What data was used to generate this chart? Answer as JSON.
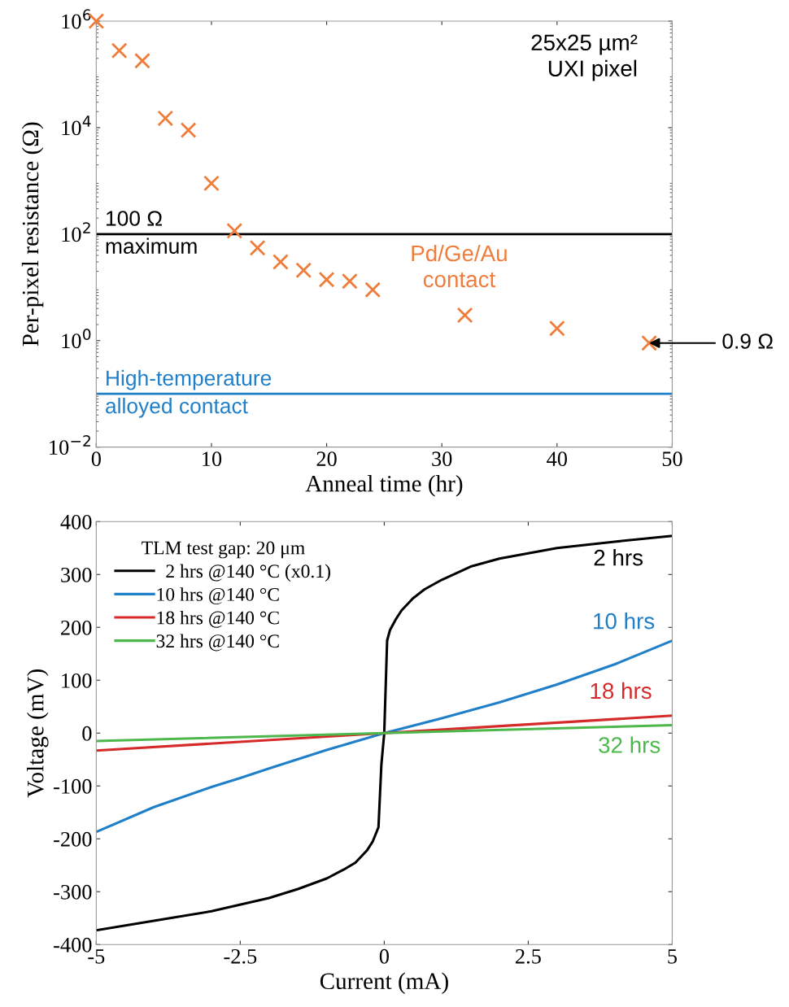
{
  "chart_data": [
    {
      "type": "scatter",
      "xlabel": "Anneal time (hr)",
      "ylabel": "Per-pixel resistance (Ω)",
      "log": "y",
      "marker": "cross",
      "grid": false,
      "xlim": [
        0,
        50
      ],
      "xticks": [
        0,
        10,
        20,
        30,
        40,
        50
      ],
      "ylim": [
        0.01,
        1000000
      ],
      "yticks": [
        {
          "value": 0.01,
          "label": "10$^{−2}$"
        },
        {
          "value": 1,
          "label": "10$^{0}$"
        },
        {
          "value": 100,
          "label": "10$^{2}$"
        },
        {
          "value": 10000,
          "label": "10$^{4}$"
        },
        {
          "value": 1000000,
          "label": "10$^{6}$"
        }
      ],
      "series": [
        {
          "color": "#f07c3a",
          "x": [
            0,
            2,
            4,
            6,
            8,
            10,
            12,
            14,
            16,
            18,
            20,
            22,
            24,
            32,
            40,
            48
          ],
          "values": [
            1000000,
            280000,
            180000,
            15000,
            9000,
            900,
            115,
            55,
            30,
            21,
            14,
            13,
            9,
            3,
            1.7,
            0.9
          ]
        }
      ],
      "ref_lines": [
        {
          "axis": "y",
          "value": 100,
          "label": "100 Ω\nmaximum",
          "color": "#000000"
        },
        {
          "axis": "y",
          "value": 0.1,
          "label": "High-temperature\nalloyed contact",
          "color": "#1f7fc8"
        }
      ],
      "annotations": [
        "25x25 µm²\nUXI pixel",
        "Pd/Ge/Au\ncontact",
        {
          "text": "0.9 Ω",
          "x": 48,
          "y": 0.9
        }
      ]
    },
    {
      "type": "line",
      "xlabel": "Current (mA)",
      "ylabel": "Voltage (mV)",
      "legend": "top left",
      "legend_title": "TLM test gap: 20 μm",
      "grid": false,
      "marker": "none",
      "line_style": "solid",
      "xlim": [
        -5,
        5
      ],
      "xticks": [
        -5,
        -2.5,
        0,
        2.5,
        5
      ],
      "ylim": [
        -400,
        400
      ],
      "yticks": [
        -400,
        -300,
        -200,
        -100,
        0,
        100,
        200,
        300,
        400
      ],
      "series": [
        {
          "name": "  2 hrs @140 °C (x0.1)",
          "color": "#000000",
          "x": [
            -5,
            -4,
            -3,
            -2,
            -1.5,
            -1,
            -0.7,
            -0.5,
            -0.3,
            -0.2,
            -0.1,
            -0.05,
            0,
            0.05,
            0.1,
            0.2,
            0.3,
            0.5,
            0.7,
            1,
            1.5,
            2,
            3,
            4,
            5
          ],
          "values": [
            -373,
            -355,
            -337,
            -312,
            -295,
            -275,
            -258,
            -245,
            -222,
            -205,
            -178,
            -60,
            0,
            175,
            195,
            215,
            232,
            255,
            272,
            290,
            315,
            330,
            350,
            362,
            373
          ]
        },
        {
          "name": "10 hrs @140 °C",
          "color": "#1f7fc8",
          "x": [
            -5,
            -4,
            -3,
            -2.5,
            -2,
            -1,
            0,
            1,
            2,
            2.5,
            3,
            4,
            5
          ],
          "values": [
            -187,
            -140,
            -102,
            -85,
            -67,
            -32,
            0,
            28,
            58,
            75,
            92,
            130,
            175
          ]
        },
        {
          "name": "18 hrs @140 °C",
          "color": "#d62a2a",
          "x": [
            -5,
            0,
            5
          ],
          "values": [
            -33,
            0,
            33
          ]
        },
        {
          "name": "32 hrs @140 °C",
          "color": "#4cb84c",
          "x": [
            -5,
            0,
            5
          ],
          "values": [
            -15,
            0,
            15
          ]
        }
      ],
      "annotations": [
        "2 hrs",
        "10 hrs",
        "18 hrs",
        "32 hrs"
      ]
    }
  ]
}
